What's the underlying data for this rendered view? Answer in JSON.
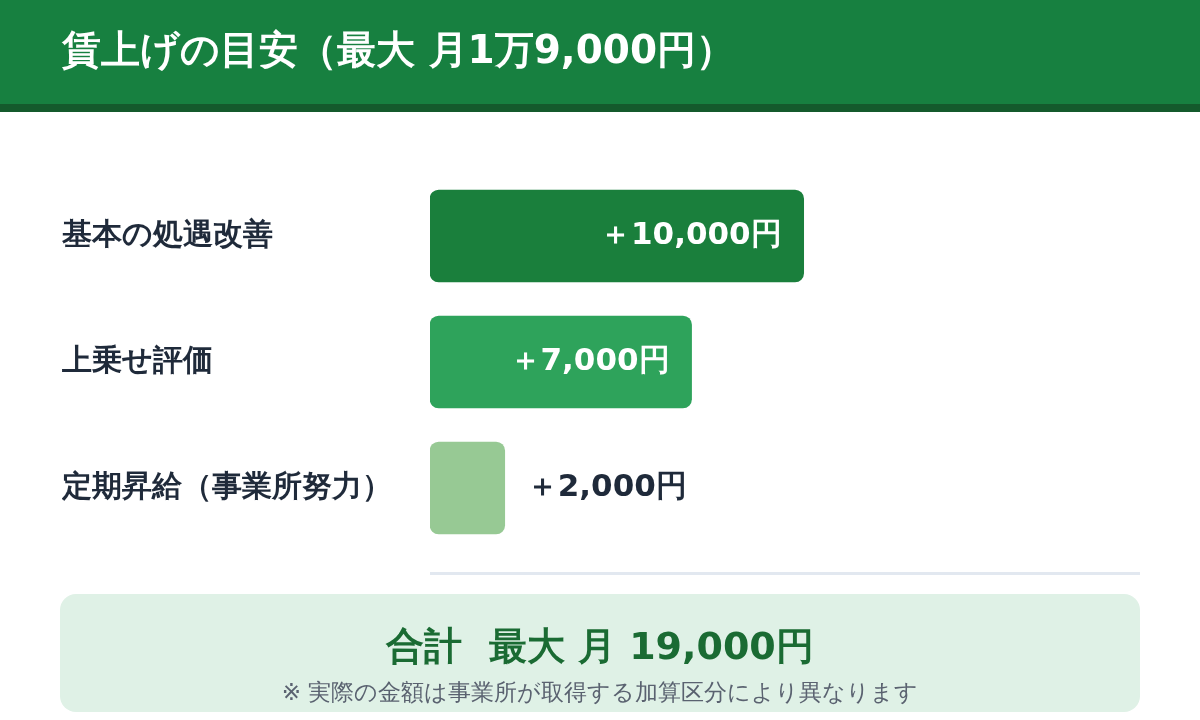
{
  "chart_data": {
    "type": "bar",
    "title": "賃上げの目安（最大 月1万9,000円）",
    "orientation": "horizontal",
    "categories": [
      "基本の処遇改善",
      "上乗せ評価",
      "定期昇給（事業所努力）"
    ],
    "values": [
      10000,
      7000,
      2000
    ],
    "colors": [
      "#1a7f3c",
      "#2ea35b",
      "#97c994"
    ],
    "value_labels": [
      "＋10,000円",
      "＋7,000円",
      "＋2,000円"
    ],
    "annotations": [
      "合計  最大 月 19,000円",
      "※ 実際の金額は事業所が取得する加算区分により異なります"
    ]
  }
}
